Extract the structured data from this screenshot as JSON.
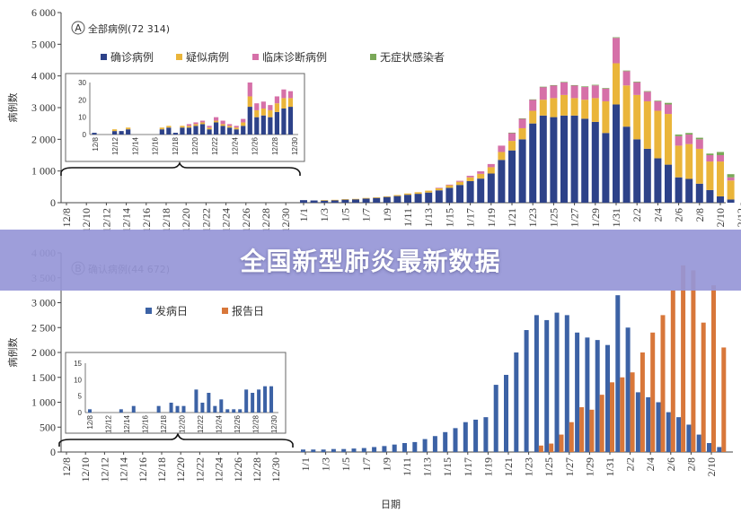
{
  "banner": {
    "title": "全国新型肺炎最新数据"
  },
  "colors": {
    "confirmed": "#2d4289",
    "suspected": "#eab53a",
    "clinical": "#d670a8",
    "asymptomatic": "#7aa858",
    "onset": "#3c62a5",
    "report": "#d8773a"
  },
  "chart_data": [
    {
      "type": "bar",
      "stacked": true,
      "title": "全部病例(72 314)",
      "panel_label": "A",
      "ylabel": "病例数",
      "ylim": [
        0,
        6000
      ],
      "yticks": [
        "0",
        "1 000",
        "2 000",
        "3 000",
        "4 000",
        "5 000",
        "6 000"
      ],
      "xtick_labels": [
        "12/8",
        "12/10",
        "12/12",
        "12/14",
        "12/16",
        "12/18",
        "12/20",
        "12/22",
        "12/24",
        "12/26",
        "12/28",
        "12/30",
        "1/1",
        "1/3",
        "1/5",
        "1/7",
        "1/9",
        "1/11",
        "1/13",
        "1/15",
        "1/17",
        "1/19",
        "1/21",
        "1/23",
        "1/25",
        "1/27",
        "1/29",
        "1/31",
        "2/2",
        "2/4",
        "2/6",
        "2/8",
        "2/10",
        "2/12"
      ],
      "legend": [
        "确诊病例",
        "疑似病例",
        "临床诊断病例",
        "无症状感染者"
      ],
      "jan_feb": {
        "dates": [
          "1/1",
          "1/2",
          "1/3",
          "1/4",
          "1/5",
          "1/6",
          "1/7",
          "1/8",
          "1/9",
          "1/10",
          "1/11",
          "1/12",
          "1/13",
          "1/14",
          "1/15",
          "1/16",
          "1/17",
          "1/18",
          "1/19",
          "1/20",
          "1/21",
          "1/22",
          "1/23",
          "1/24",
          "1/25",
          "1/26",
          "1/27",
          "1/28",
          "1/29",
          "1/30",
          "1/31",
          "2/1",
          "2/2",
          "2/3",
          "2/4",
          "2/5",
          "2/6",
          "2/7",
          "2/8",
          "2/9",
          "2/10",
          "2/11"
        ],
        "confirmed": [
          80,
          70,
          70,
          80,
          100,
          110,
          130,
          150,
          180,
          210,
          250,
          280,
          320,
          390,
          470,
          560,
          680,
          760,
          920,
          1350,
          1650,
          2000,
          2500,
          2750,
          2700,
          2750,
          2750,
          2650,
          2550,
          2200,
          3100,
          2400,
          2000,
          1700,
          1400,
          1200,
          800,
          750,
          600,
          400,
          200,
          100
        ],
        "suspected": [
          0,
          0,
          10,
          10,
          10,
          10,
          20,
          20,
          20,
          30,
          40,
          50,
          60,
          70,
          80,
          100,
          120,
          150,
          200,
          250,
          300,
          350,
          400,
          500,
          600,
          650,
          550,
          600,
          750,
          1000,
          1300,
          1300,
          1400,
          1500,
          1500,
          1600,
          1000,
          1100,
          1100,
          900,
          1100,
          600
        ],
        "clinical": [
          0,
          0,
          0,
          0,
          0,
          0,
          0,
          0,
          0,
          0,
          0,
          0,
          0,
          10,
          20,
          30,
          50,
          80,
          100,
          200,
          250,
          300,
          350,
          400,
          400,
          400,
          400,
          400,
          400,
          400,
          800,
          450,
          400,
          300,
          300,
          300,
          300,
          300,
          300,
          200,
          200,
          100
        ],
        "asymptomatic": [
          0,
          0,
          0,
          0,
          0,
          0,
          0,
          0,
          0,
          0,
          0,
          0,
          0,
          0,
          0,
          0,
          0,
          0,
          0,
          0,
          10,
          10,
          10,
          10,
          10,
          10,
          10,
          20,
          20,
          20,
          20,
          20,
          20,
          20,
          20,
          50,
          50,
          50,
          50,
          50,
          100,
          100
        ]
      },
      "inset": {
        "yticks": [
          "0",
          "10",
          "20",
          "30"
        ],
        "ylim": [
          0,
          30
        ],
        "xtick_labels": [
          "12/8",
          "12/12",
          "12/14",
          "12/16",
          "12/18",
          "12/20",
          "12/22",
          "12/24",
          "12/26",
          "12/28",
          "12/30"
        ],
        "confirmed": [
          1,
          0,
          0,
          2,
          2,
          3,
          0,
          0,
          0,
          0,
          3,
          4,
          1,
          4,
          4,
          5,
          6,
          3,
          7,
          5,
          4,
          3,
          5,
          16,
          10,
          11,
          10,
          13,
          15,
          16
        ],
        "suspected": [
          0,
          0,
          0,
          1,
          0,
          1,
          0,
          0,
          0,
          0,
          1,
          1,
          0,
          1,
          1,
          1,
          1,
          1,
          1,
          1,
          1,
          1,
          2,
          6,
          4,
          4,
          4,
          5,
          6,
          5
        ],
        "clinical": [
          0,
          0,
          0,
          0,
          0,
          0,
          0,
          0,
          0,
          0,
          0,
          0,
          0,
          0,
          1,
          1,
          1,
          1,
          2,
          2,
          1,
          1,
          2,
          8,
          4,
          4,
          3,
          4,
          5,
          4
        ]
      }
    },
    {
      "type": "bar",
      "title": "确认病例(44 672)",
      "panel_label": "B",
      "ylabel": "病例数",
      "xlabel": "日期",
      "ylim": [
        0,
        4000
      ],
      "yticks": [
        "0",
        "500",
        "1 000",
        "1 500",
        "2 000",
        "2 500",
        "3 000",
        "3 500",
        "4 000"
      ],
      "xtick_labels": [
        "12/8",
        "12/10",
        "12/12",
        "12/14",
        "12/16",
        "12/18",
        "12/20",
        "12/22",
        "12/24",
        "12/26",
        "12/28",
        "12/30",
        "1/1",
        "1/3",
        "1/5",
        "1/7",
        "1/9",
        "1/11",
        "1/13",
        "1/15",
        "1/17",
        "1/19",
        "1/21",
        "1/23",
        "1/25",
        "1/27",
        "1/29",
        "1/31",
        "2/2",
        "2/4",
        "2/6",
        "2/8",
        "2/10"
      ],
      "legend": [
        "发病日",
        "报告日"
      ],
      "jan_feb": {
        "dates": [
          "1/1",
          "1/2",
          "1/3",
          "1/4",
          "1/5",
          "1/6",
          "1/7",
          "1/8",
          "1/9",
          "1/10",
          "1/11",
          "1/12",
          "1/13",
          "1/14",
          "1/15",
          "1/16",
          "1/17",
          "1/18",
          "1/19",
          "1/20",
          "1/21",
          "1/22",
          "1/23",
          "1/24",
          "1/25",
          "1/26",
          "1/27",
          "1/28",
          "1/29",
          "1/30",
          "1/31",
          "2/1",
          "2/2",
          "2/3",
          "2/4",
          "2/5",
          "2/6",
          "2/7",
          "2/8",
          "2/9",
          "2/10",
          "2/11"
        ],
        "onset": [
          50,
          50,
          50,
          60,
          60,
          70,
          80,
          100,
          120,
          150,
          180,
          200,
          260,
          320,
          400,
          480,
          600,
          650,
          700,
          1350,
          1550,
          2000,
          2450,
          2750,
          2650,
          2800,
          2750,
          2400,
          2300,
          2250,
          2150,
          3150,
          2500,
          1200,
          1100,
          1000,
          800,
          700,
          550,
          350,
          180,
          100
        ],
        "report": [
          0,
          0,
          0,
          0,
          0,
          0,
          0,
          0,
          0,
          0,
          0,
          0,
          0,
          0,
          0,
          0,
          0,
          0,
          0,
          0,
          0,
          0,
          0,
          130,
          170,
          350,
          600,
          900,
          850,
          1150,
          1400,
          1500,
          1600,
          2000,
          2400,
          2750,
          3250,
          3750,
          3650,
          2600,
          3350,
          2100
        ]
      },
      "inset": {
        "yticks": [
          "0",
          "5",
          "10",
          "15"
        ],
        "ylim": [
          0,
          15
        ],
        "xtick_labels": [
          "12/8",
          "12/12",
          "12/14",
          "12/16",
          "12/18",
          "12/20",
          "12/22",
          "12/24",
          "12/26",
          "12/28",
          "12/30"
        ],
        "onset": [
          1,
          0,
          0,
          0,
          0,
          1,
          0,
          2,
          0,
          0,
          0,
          2,
          0,
          3,
          2,
          2,
          0,
          7,
          3,
          6,
          2,
          4,
          1,
          1,
          1,
          7,
          6,
          7,
          8,
          8
        ]
      }
    }
  ]
}
